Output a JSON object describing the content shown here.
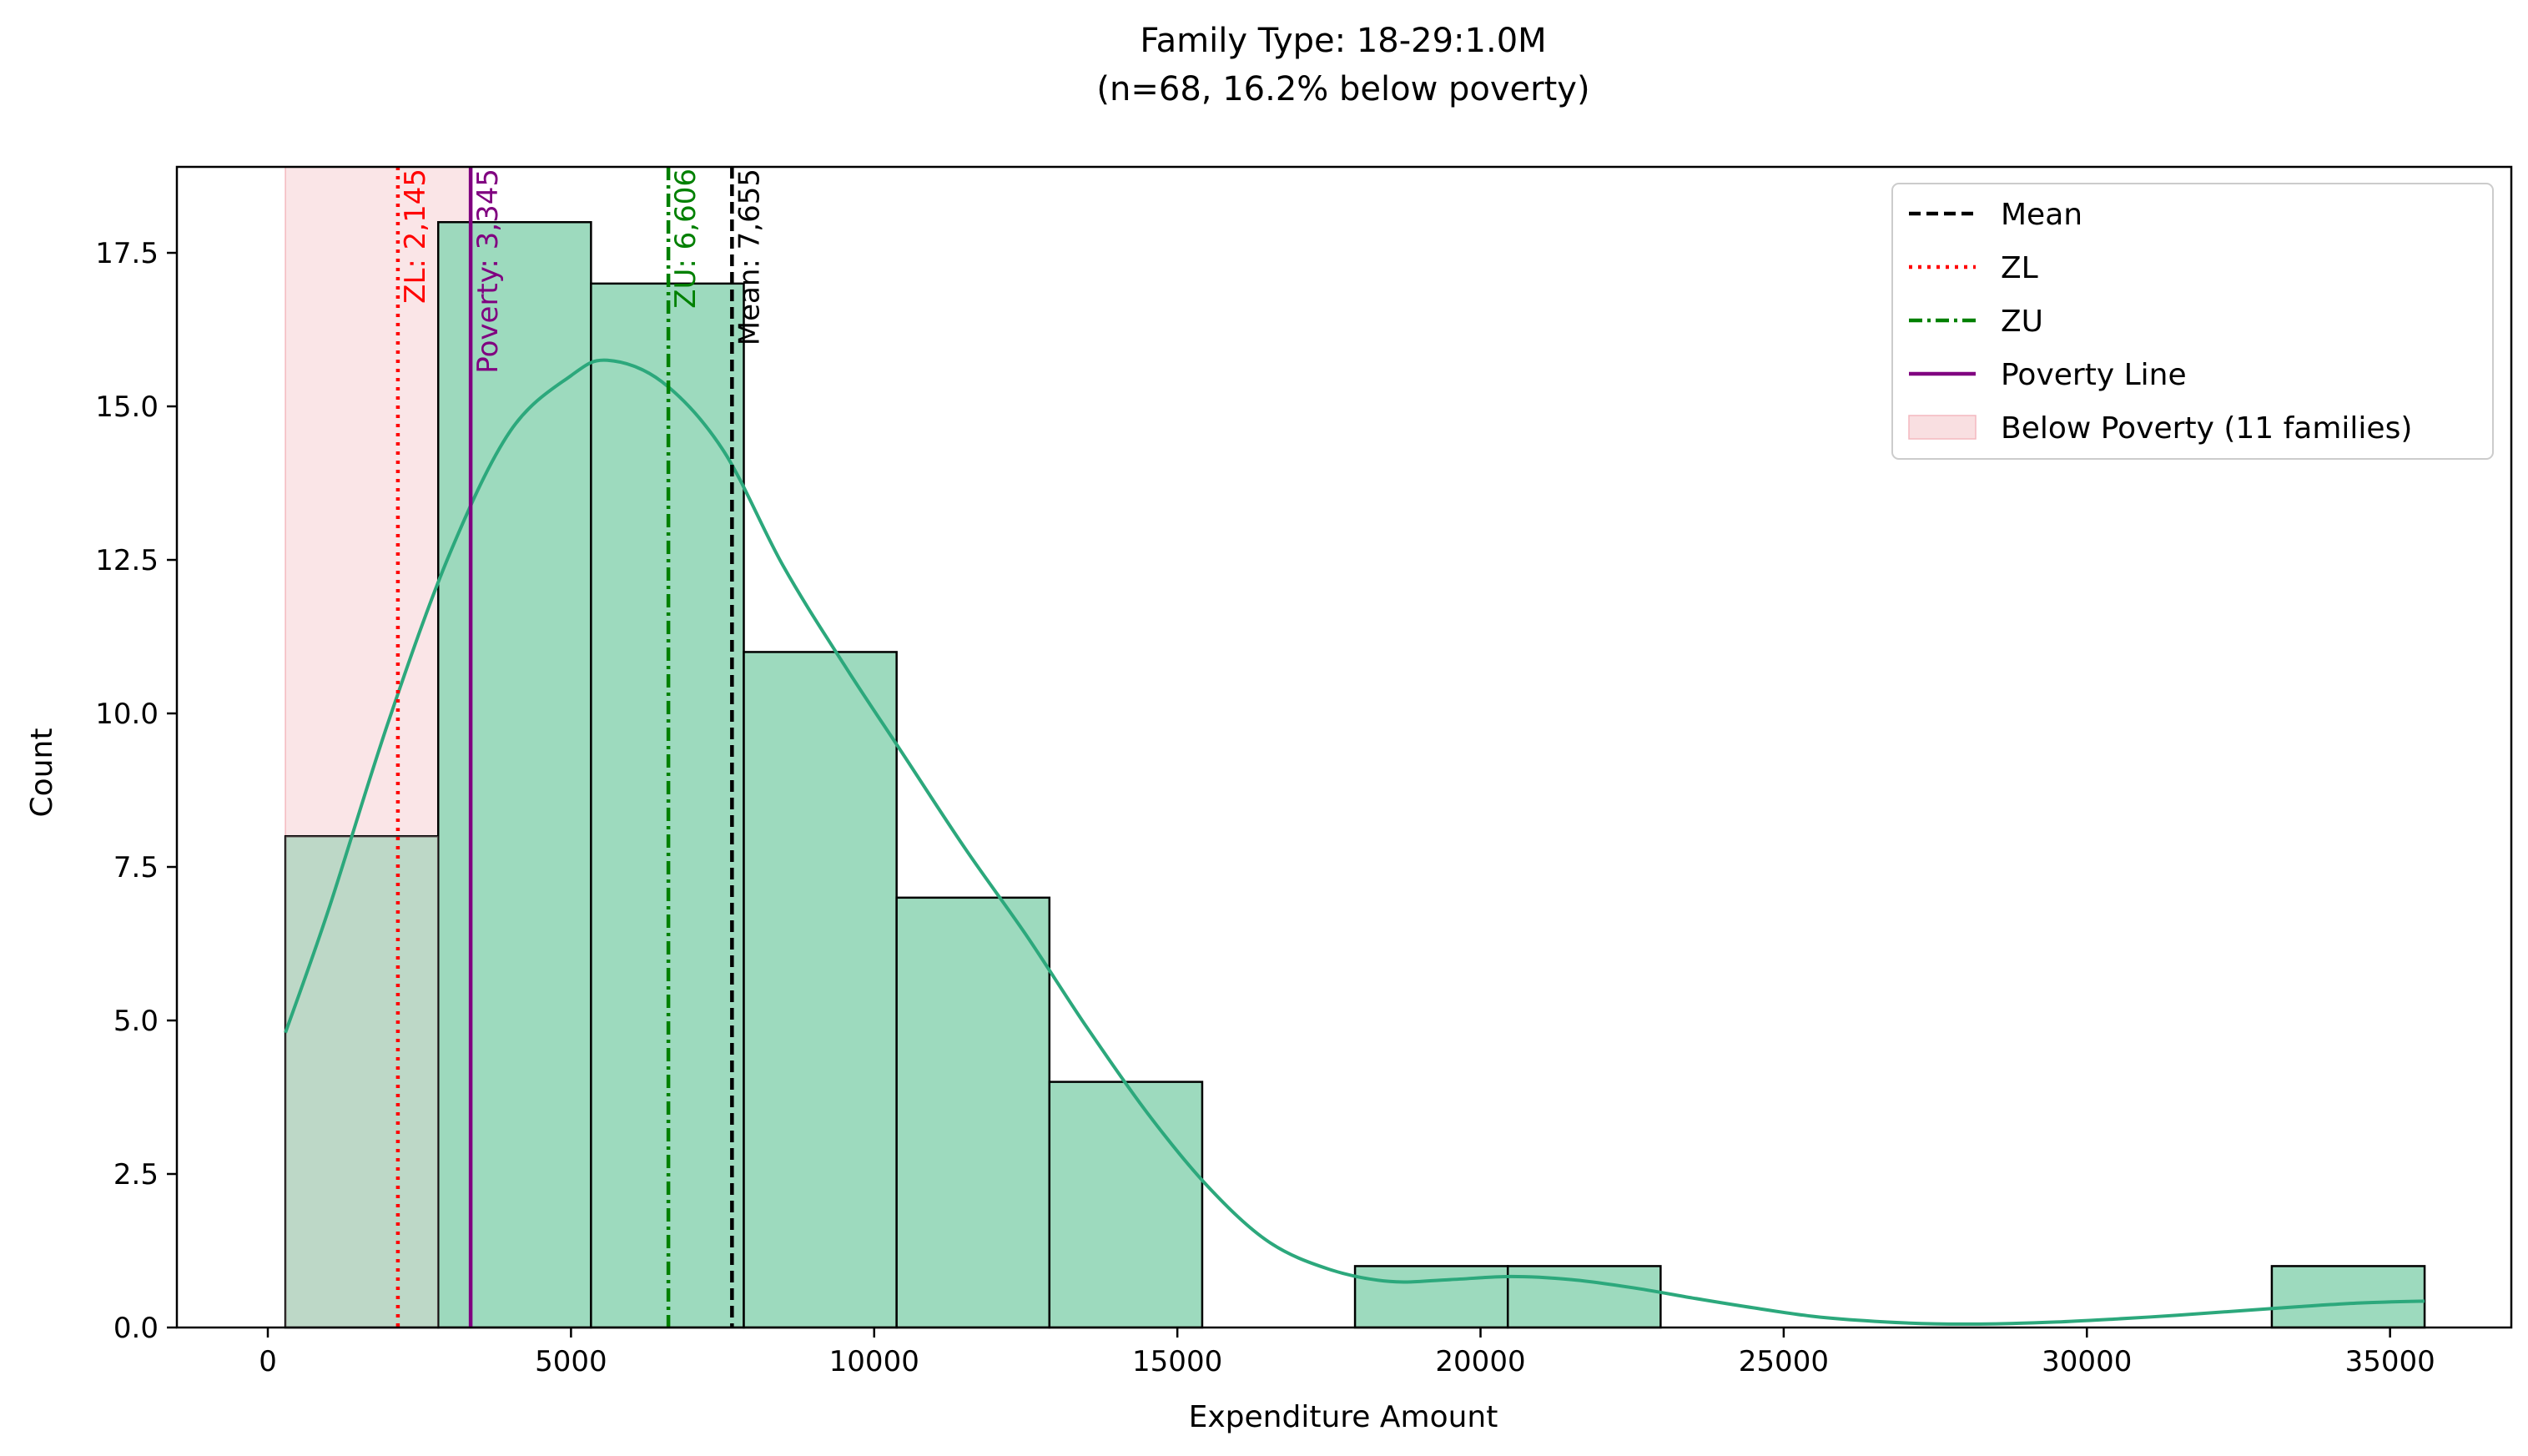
{
  "chart_data": {
    "type": "bar",
    "title": "Family Type: 18-29:1.0M",
    "subtitle": "(n=68, 16.2% below poverty)",
    "xlabel": "Expenditure Amount",
    "ylabel": "Count",
    "xlim": [
      -1500,
      37000
    ],
    "ylim": [
      0,
      18.9
    ],
    "xticks": [
      0,
      5000,
      10000,
      15000,
      20000,
      25000,
      30000,
      35000
    ],
    "xtick_labels": [
      "0",
      "5000",
      "10000",
      "15000",
      "20000",
      "25000",
      "30000",
      "35000"
    ],
    "yticks": [
      0,
      2.5,
      5,
      7.5,
      10,
      12.5,
      15,
      17.5
    ],
    "ytick_labels": [
      "0.0",
      "2.5",
      "5.0",
      "7.5",
      "10.0",
      "12.5",
      "15.0",
      "17.5"
    ],
    "grid": false,
    "legend_position": "top-right",
    "bins": [
      {
        "x0": 290,
        "x1": 2810,
        "count": 8
      },
      {
        "x0": 2810,
        "x1": 5330,
        "count": 18
      },
      {
        "x0": 5330,
        "x1": 7850,
        "count": 17
      },
      {
        "x0": 7850,
        "x1": 10370,
        "count": 11
      },
      {
        "x0": 10370,
        "x1": 12890,
        "count": 7
      },
      {
        "x0": 12890,
        "x1": 15410,
        "count": 4
      },
      {
        "x0": 15410,
        "x1": 17930,
        "count": 0
      },
      {
        "x0": 17930,
        "x1": 20450,
        "count": 1
      },
      {
        "x0": 20450,
        "x1": 22970,
        "count": 1
      },
      {
        "x0": 22970,
        "x1": 25490,
        "count": 0
      },
      {
        "x0": 25490,
        "x1": 28010,
        "count": 0
      },
      {
        "x0": 28010,
        "x1": 30530,
        "count": 0
      },
      {
        "x0": 30530,
        "x1": 33050,
        "count": 0
      },
      {
        "x0": 33050,
        "x1": 35570,
        "count": 1
      }
    ],
    "kde": {
      "x": [
        290,
        1000,
        2000,
        3000,
        4000,
        5000,
        5600,
        6500,
        7500,
        8500,
        9500,
        10500,
        11500,
        12500,
        13500,
        14500,
        15500,
        16500,
        17500,
        18500,
        19500,
        20500,
        21500,
        22500,
        23500,
        24500,
        25500,
        26500,
        27500,
        28500,
        29500,
        30500,
        31500,
        32500,
        33500,
        34500,
        35570
      ],
      "y": [
        4.8,
        6.8,
        9.9,
        12.6,
        14.6,
        15.5,
        15.75,
        15.4,
        14.3,
        12.4,
        10.8,
        9.3,
        7.8,
        6.4,
        4.9,
        3.5,
        2.3,
        1.4,
        0.95,
        0.75,
        0.78,
        0.83,
        0.78,
        0.65,
        0.48,
        0.32,
        0.18,
        0.1,
        0.06,
        0.06,
        0.09,
        0.14,
        0.2,
        0.27,
        0.34,
        0.4,
        0.43
      ]
    },
    "poverty_region": {
      "x0": 290,
      "x1": 3345,
      "label": "Below Poverty (11 families)",
      "color": "#f8d7da"
    },
    "reference_lines": [
      {
        "name": "ZL",
        "value": 2145,
        "label": "ZL: 2,145",
        "color": "#ff0000",
        "style": "dotted"
      },
      {
        "name": "Poverty Line",
        "value": 3345,
        "label": "Poverty: 3,345",
        "color": "#800080",
        "style": "solid"
      },
      {
        "name": "ZU",
        "value": 6606,
        "label": "ZU: 6,606",
        "color": "#008000",
        "style": "dashdot"
      },
      {
        "name": "Mean",
        "value": 7655,
        "label": "Mean: 7,655",
        "color": "#000000",
        "style": "dashed"
      }
    ],
    "legend": [
      "Mean",
      "ZL",
      "ZU",
      "Poverty Line",
      "Below Poverty (11 families)"
    ],
    "colors": {
      "bar_fill": "#98d8bb",
      "bar_edge": "#000000",
      "kde": "#2ca87c"
    }
  }
}
